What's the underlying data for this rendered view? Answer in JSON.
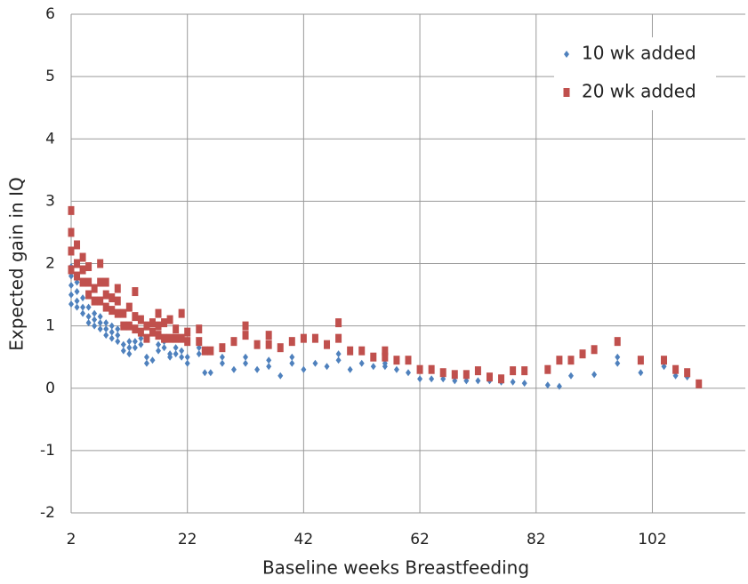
{
  "chart_data": {
    "type": "scatter",
    "xlabel": "Baseline weeks Breastfeeding",
    "ylabel": "Expected gain in IQ",
    "xlim": [
      2,
      118
    ],
    "ylim": [
      -2,
      6
    ],
    "xticks": [
      2,
      22,
      42,
      62,
      82,
      102
    ],
    "yticks": [
      -2,
      -1,
      0,
      1,
      2,
      3,
      4,
      5,
      6
    ],
    "grid": true,
    "legend": "upper right",
    "series": [
      {
        "name": "10 wk added",
        "color": "#4f81bd",
        "marker": "diamond",
        "x": [
          2,
          2,
          2,
          2,
          2,
          3,
          3,
          3,
          3,
          4,
          4,
          4,
          5,
          5,
          5,
          6,
          6,
          6,
          7,
          7,
          7,
          8,
          8,
          8,
          9,
          9,
          9,
          10,
          10,
          10,
          11,
          11,
          12,
          12,
          12,
          13,
          13,
          14,
          14,
          15,
          15,
          16,
          17,
          17,
          18,
          18,
          19,
          19,
          20,
          20,
          21,
          21,
          22,
          22,
          24,
          24,
          25,
          26,
          28,
          28,
          30,
          32,
          32,
          34,
          36,
          36,
          38,
          40,
          40,
          42,
          44,
          46,
          48,
          48,
          50,
          52,
          54,
          56,
          56,
          58,
          60,
          62,
          64,
          66,
          68,
          70,
          72,
          74,
          76,
          78,
          80,
          84,
          86,
          88,
          92,
          96,
          96,
          100,
          104,
          106,
          108
        ],
        "values": [
          1.35,
          1.5,
          1.65,
          1.8,
          1.95,
          1.3,
          1.4,
          1.55,
          1.7,
          1.2,
          1.3,
          1.45,
          1.05,
          1.15,
          1.3,
          1.0,
          1.1,
          1.2,
          0.95,
          1.05,
          1.15,
          0.85,
          0.95,
          1.05,
          0.8,
          0.9,
          1.0,
          0.75,
          0.85,
          0.95,
          0.6,
          0.7,
          0.55,
          0.65,
          0.75,
          0.65,
          0.75,
          0.7,
          0.8,
          0.4,
          0.5,
          0.45,
          0.6,
          0.7,
          0.65,
          0.75,
          0.5,
          0.55,
          0.55,
          0.65,
          0.5,
          0.6,
          0.4,
          0.5,
          0.55,
          0.65,
          0.25,
          0.25,
          0.4,
          0.5,
          0.3,
          0.4,
          0.5,
          0.3,
          0.35,
          0.45,
          0.2,
          0.4,
          0.5,
          0.3,
          0.4,
          0.35,
          0.45,
          0.55,
          0.3,
          0.4,
          0.35,
          0.35,
          0.4,
          0.3,
          0.25,
          0.15,
          0.15,
          0.15,
          0.12,
          0.12,
          0.12,
          0.12,
          0.1,
          0.1,
          0.08,
          0.05,
          0.03,
          0.2,
          0.22,
          0.4,
          0.5,
          0.25,
          0.35,
          0.2,
          0.18
        ]
      },
      {
        "name": "20 wk added",
        "color": "#c0504d",
        "marker": "square",
        "x": [
          2,
          2,
          2,
          2,
          3,
          3,
          3,
          4,
          4,
          4,
          5,
          5,
          5,
          6,
          6,
          7,
          7,
          7,
          8,
          8,
          8,
          9,
          9,
          10,
          10,
          10,
          11,
          11,
          12,
          12,
          13,
          13,
          13,
          14,
          14,
          15,
          15,
          16,
          16,
          17,
          17,
          17,
          18,
          18,
          19,
          19,
          20,
          20,
          21,
          21,
          22,
          22,
          24,
          24,
          25,
          26,
          28,
          30,
          32,
          32,
          34,
          36,
          36,
          38,
          40,
          42,
          44,
          46,
          48,
          48,
          50,
          52,
          54,
          56,
          56,
          58,
          60,
          62,
          64,
          66,
          68,
          70,
          72,
          74,
          76,
          78,
          80,
          84,
          86,
          88,
          90,
          92,
          96,
          100,
          104,
          106,
          108,
          110
        ],
        "values": [
          1.9,
          2.2,
          2.5,
          2.85,
          1.8,
          2.0,
          2.3,
          1.7,
          1.9,
          2.1,
          1.5,
          1.7,
          1.95,
          1.4,
          1.6,
          1.4,
          1.7,
          2.0,
          1.3,
          1.5,
          1.7,
          1.25,
          1.45,
          1.2,
          1.4,
          1.6,
          1.0,
          1.2,
          1.0,
          1.3,
          0.95,
          1.15,
          1.55,
          0.9,
          1.1,
          0.8,
          1.0,
          0.9,
          1.05,
          0.85,
          1.0,
          1.2,
          0.8,
          1.05,
          0.8,
          1.1,
          0.8,
          0.95,
          0.8,
          1.2,
          0.75,
          0.9,
          0.75,
          0.95,
          0.6,
          0.6,
          0.65,
          0.75,
          0.85,
          1.0,
          0.7,
          0.7,
          0.85,
          0.65,
          0.75,
          0.8,
          0.8,
          0.7,
          0.8,
          1.05,
          0.6,
          0.6,
          0.5,
          0.5,
          0.6,
          0.45,
          0.45,
          0.3,
          0.3,
          0.25,
          0.22,
          0.22,
          0.28,
          0.18,
          0.15,
          0.28,
          0.28,
          0.3,
          0.45,
          0.45,
          0.55,
          0.62,
          0.75,
          0.45,
          0.45,
          0.3,
          0.25,
          0.07
        ]
      }
    ]
  }
}
